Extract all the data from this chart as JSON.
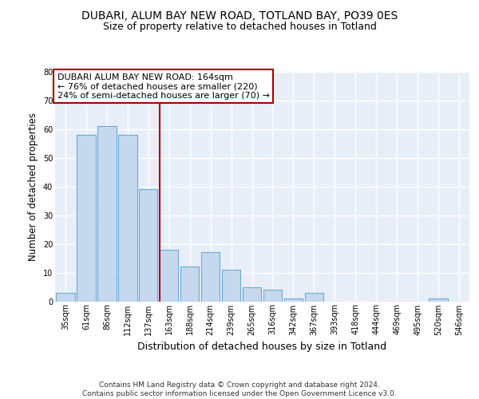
{
  "title1": "DUBARI, ALUM BAY NEW ROAD, TOTLAND BAY, PO39 0ES",
  "title2": "Size of property relative to detached houses in Totland",
  "xlabel": "Distribution of detached houses by size in Totland",
  "ylabel": "Number of detached properties",
  "categories": [
    "35sqm",
    "61sqm",
    "86sqm",
    "112sqm",
    "137sqm",
    "163sqm",
    "188sqm",
    "214sqm",
    "239sqm",
    "265sqm",
    "316sqm",
    "342sqm",
    "367sqm",
    "393sqm",
    "418sqm",
    "444sqm",
    "469sqm",
    "495sqm",
    "520sqm",
    "546sqm"
  ],
  "values": [
    3,
    58,
    61,
    58,
    39,
    18,
    12,
    17,
    11,
    5,
    4,
    1,
    3,
    0,
    0,
    0,
    0,
    0,
    1,
    0
  ],
  "bar_color": "#c5d8ee",
  "bar_edge_color": "#6aaad4",
  "background_color": "#e8eef8",
  "grid_color": "#ffffff",
  "vline_x_idx": 5,
  "vline_color": "#aa0000",
  "annotation_text": "DUBARI ALUM BAY NEW ROAD: 164sqm\n← 76% of detached houses are smaller (220)\n24% of semi-detached houses are larger (70) →",
  "annotation_box_color": "#ffffff",
  "annotation_box_edge": "#aa0000",
  "footer": "Contains HM Land Registry data © Crown copyright and database right 2024.\nContains public sector information licensed under the Open Government Licence v3.0.",
  "ylim": [
    0,
    80
  ],
  "title1_fontsize": 10,
  "title2_fontsize": 9,
  "xlabel_fontsize": 9,
  "ylabel_fontsize": 8.5,
  "tick_fontsize": 7,
  "footer_fontsize": 6.5,
  "ann_fontsize": 8
}
